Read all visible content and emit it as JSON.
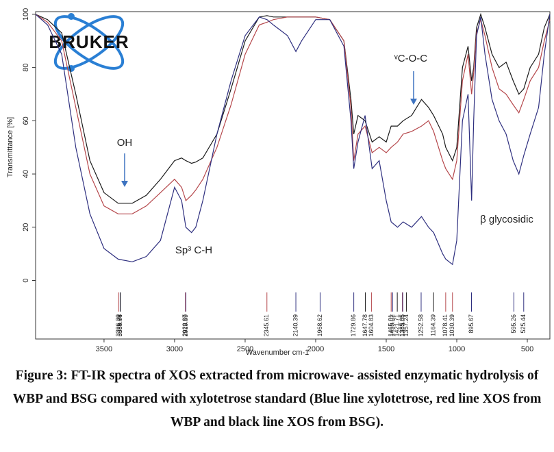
{
  "logo": "BRUKER",
  "chart_data": {
    "type": "line",
    "xlabel": "Wavenumber cm-1",
    "ylabel": "Transmittance [%]",
    "xlim": [
      3985,
      340
    ],
    "ylim": [
      -22,
      101
    ],
    "xticks": [
      3500,
      3000,
      2500,
      2000,
      1500,
      1000,
      500
    ],
    "yticks": [
      0,
      20,
      40,
      60,
      80,
      100
    ],
    "x": [
      3985,
      3900,
      3800,
      3700,
      3600,
      3500,
      3400,
      3300,
      3200,
      3100,
      3000,
      2950,
      2920,
      2880,
      2850,
      2800,
      2700,
      2600,
      2500,
      2400,
      2345,
      2300,
      2200,
      2140,
      2100,
      2000,
      1900,
      1800,
      1750,
      1730,
      1700,
      1650,
      1600,
      1550,
      1500,
      1465,
      1420,
      1380,
      1320,
      1250,
      1200,
      1164,
      1100,
      1078,
      1030,
      1000,
      960,
      920,
      895,
      880,
      860,
      830,
      800,
      750,
      700,
      650,
      600,
      560,
      525,
      480,
      420,
      380,
      340
    ],
    "series": [
      {
        "color": "#1a1a1a",
        "values": [
          100,
          98,
          93,
          70,
          45,
          33,
          29,
          29,
          32,
          38,
          45,
          46,
          45,
          44,
          44.5,
          46,
          55,
          72,
          90,
          99,
          99.5,
          99,
          99,
          99,
          99,
          99,
          98,
          90,
          68,
          55,
          62,
          60,
          52,
          54,
          52,
          58,
          58,
          60,
          62,
          68,
          65,
          62,
          55,
          50,
          45,
          50,
          80,
          88,
          75,
          80,
          95,
          100,
          95,
          85,
          80,
          82,
          75,
          70,
          72,
          80,
          85,
          95,
          100
        ]
      },
      {
        "color": "#b5474b",
        "values": [
          100,
          97,
          90,
          65,
          40,
          28,
          25,
          25,
          28,
          33,
          38,
          35,
          30,
          32,
          34,
          38,
          50,
          66,
          85,
          96,
          97,
          98,
          99,
          99,
          99,
          99,
          98,
          90,
          65,
          45,
          55,
          58,
          48,
          50,
          48,
          50,
          52,
          55,
          56,
          58,
          60,
          56,
          45,
          42,
          38,
          45,
          75,
          85,
          70,
          78,
          93,
          98,
          92,
          80,
          72,
          70,
          66,
          63,
          68,
          75,
          80,
          90,
          98
        ]
      },
      {
        "color": "#2e2f7f",
        "values": [
          100,
          96,
          85,
          50,
          25,
          12,
          8,
          7,
          9,
          15,
          35,
          30,
          20,
          18,
          20,
          30,
          55,
          75,
          92,
          99,
          98,
          96,
          92,
          86,
          90,
          98,
          98,
          88,
          60,
          42,
          52,
          62,
          42,
          45,
          30,
          22,
          20,
          22,
          20,
          24,
          20,
          18,
          10,
          8,
          6,
          15,
          60,
          70,
          30,
          60,
          92,
          99,
          85,
          68,
          60,
          55,
          45,
          40,
          47,
          55,
          65,
          85,
          100
        ]
      }
    ],
    "peaks": [
      {
        "value": 3396.3,
        "label": "3396.30",
        "color": "#b5474b"
      },
      {
        "value": 3385.84,
        "label": "3385.84",
        "color": "#2e2f7f"
      },
      {
        "value": 3384.76,
        "label": "3384.76",
        "color": "#1a1a1a"
      },
      {
        "value": 2922.87,
        "label": "2922.87",
        "color": "#b5474b"
      },
      {
        "value": 2919.59,
        "label": "2919.59",
        "color": "#2e2f7f"
      },
      {
        "value": 2345.61,
        "label": "2345.61",
        "color": "#b5474b"
      },
      {
        "value": 2140.39,
        "label": "2140.39",
        "color": "#2e2f7f"
      },
      {
        "value": 1968.62,
        "label": "1968.62",
        "color": "#2e2f7f"
      },
      {
        "value": 1729.86,
        "label": "1729.86",
        "color": "#2e2f7f"
      },
      {
        "value": 1647.78,
        "label": "1647.78",
        "color": "#1a1a1a"
      },
      {
        "value": 1604.83,
        "label": "1604.83",
        "color": "#b5474b"
      },
      {
        "value": 1465.01,
        "label": "1465.01",
        "color": "#b5474b"
      },
      {
        "value": 1455.02,
        "label": "1455.02",
        "color": "#2e2f7f"
      },
      {
        "value": 1421.71,
        "label": "1421.71",
        "color": "#1a1a1a"
      },
      {
        "value": 1385.65,
        "label": "1385.65",
        "color": "#b5474b"
      },
      {
        "value": 1383.05,
        "label": "1383.05",
        "color": "#2e2f7f"
      },
      {
        "value": 1357.24,
        "label": "1357.24",
        "color": "#1a1a1a"
      },
      {
        "value": 1252.58,
        "label": "1252.58",
        "color": "#2e2f7f"
      },
      {
        "value": 1164.39,
        "label": "1164.39",
        "color": "#1a1a1a"
      },
      {
        "value": 1078.41,
        "label": "1078.41",
        "color": "#b5474b"
      },
      {
        "value": 1030.39,
        "label": "1030.39",
        "color": "#b5474b"
      },
      {
        "value": 895.67,
        "label": "895.67",
        "color": "#2e2f7f"
      },
      {
        "value": 595.26,
        "label": "595.26",
        "color": "#2e2f7f"
      },
      {
        "value": 525.44,
        "label": "525.44",
        "color": "#2e2f7f"
      }
    ],
    "annotations": [
      "OH",
      "Sp³ C-H",
      "ᵛC-O-C",
      "β glycosidic"
    ],
    "caption": "Figure 3: FT-IR spectra of XOS extracted from microwave- assisted enzymatic hydrolysis of WBP and BSG compared with xylotetrose standard (Blue line xylotetrose, red line XOS from WBP and black line XOS from BSG)."
  }
}
